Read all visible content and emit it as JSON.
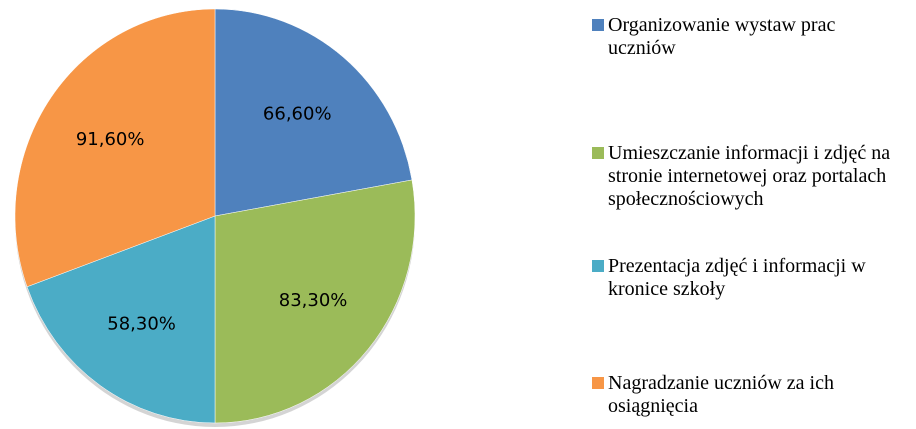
{
  "chart_data": {
    "type": "pie",
    "categories": [
      "Organizowanie wystaw prac uczniów",
      "Umieszczanie informacji i zdjęć na stronie internetowej oraz portalach społecznościowych",
      "Prezentacja zdjęć i informacji w kronice szkoły",
      "Nagradzanie uczniów za ich osiągnięcia"
    ],
    "values": [
      66.6,
      83.3,
      58.3,
      91.6
    ],
    "value_labels": [
      "66,60%",
      "83,30%",
      "58,30%",
      "91,60%"
    ],
    "colors": [
      "#4f81bd",
      "#9bbb59",
      "#4bacc6",
      "#f79646"
    ],
    "legend": "right"
  }
}
